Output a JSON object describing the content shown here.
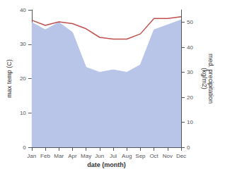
{
  "chart_data": {
    "type": "line",
    "categories": [
      "Jan",
      "Feb",
      "Mar",
      "Apr",
      "May",
      "Jun",
      "Jul",
      "Aug",
      "Sep",
      "Oct",
      "Nov",
      "Dec"
    ],
    "series": [
      {
        "type": "area",
        "axis": "y2",
        "color": "#b8c4e8",
        "values": [
          50.0,
          47.0,
          50.0,
          46.0,
          32.0,
          30.0,
          31.0,
          30.0,
          33.0,
          47.0,
          49.0,
          51.0
        ]
      },
      {
        "type": "line",
        "color": "#c0504d",
        "values": [
          37.0,
          35.5,
          36.5,
          36.0,
          34.5,
          32.0,
          31.5,
          31.5,
          33.0,
          37.5,
          37.5,
          38.0
        ]
      }
    ],
    "xlabel": "date (month)",
    "ylabel": "max temp (C)",
    "y2label": "med. precipitation\n(kg/m2)",
    "ylim": [
      0,
      40
    ],
    "yticks": [
      0,
      10,
      20,
      30,
      40
    ],
    "y2lim": [
      0,
      55
    ],
    "y2ticks": [
      0,
      10,
      20,
      30,
      40,
      50
    ],
    "grid": false
  }
}
